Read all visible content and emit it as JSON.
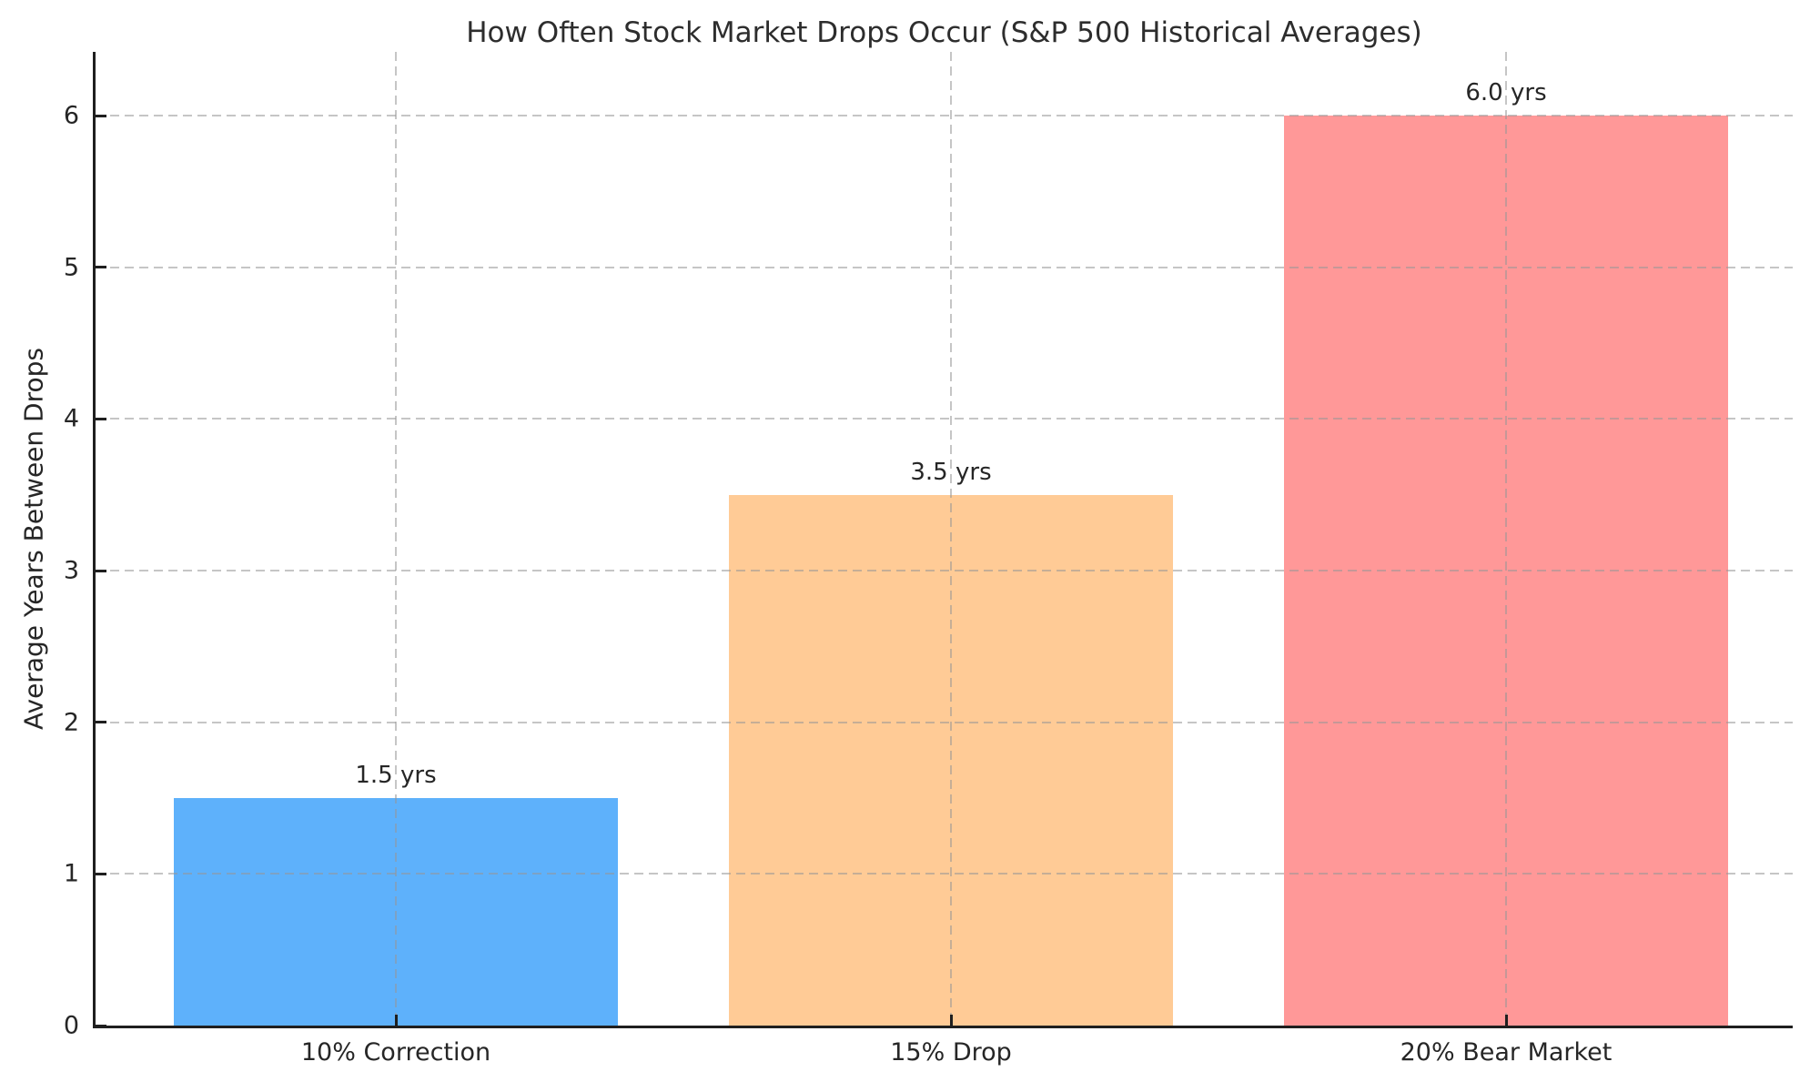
{
  "chart_data": {
    "type": "bar",
    "title": "How Often Stock Market Drops Occur (S&P 500 Historical Averages)",
    "categories": [
      "10% Correction",
      "15% Drop",
      "20% Bear Market"
    ],
    "values": [
      1.5,
      3.5,
      6.0
    ],
    "bar_labels": [
      "1.5 yrs",
      "3.5 yrs",
      "6.0 yrs"
    ],
    "bar_colors": [
      "#5eb1fb",
      "#ffcb96",
      "#ff9898"
    ],
    "xlabel": "",
    "ylabel": "Average Years Between Drops",
    "ylim": [
      0,
      6
    ],
    "yticks": [
      "0",
      "1",
      "2",
      "3",
      "4",
      "5",
      "6"
    ],
    "grid": true,
    "grid_style": "dashed",
    "legend_position": "none",
    "colors": {
      "spine": "#1f1f1f",
      "grid": "#c8c8c8",
      "text": "#262626",
      "background": "#ffffff"
    }
  }
}
